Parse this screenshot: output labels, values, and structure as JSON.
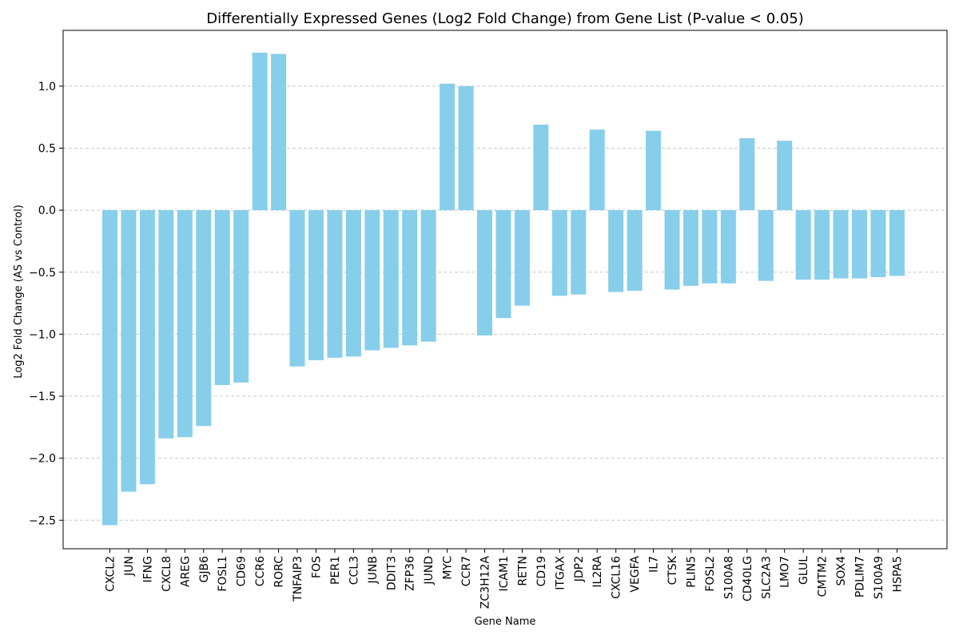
{
  "chart_data": {
    "type": "bar",
    "title": "Differentially Expressed Genes (Log2 Fold Change) from Gene List (P-value < 0.05)",
    "xlabel": "Gene Name",
    "ylabel": "Log2 Fold Change (AS vs Control)",
    "ylim": [
      -2.73,
      1.45
    ],
    "yticks": [
      -2.5,
      -2.0,
      -1.5,
      -1.0,
      -0.5,
      0.0,
      0.5,
      1.0
    ],
    "ytick_labels": [
      "−2.5",
      "−2.0",
      "−1.5",
      "−1.0",
      "−0.5",
      "0.0",
      "0.5",
      "1.0"
    ],
    "grid": "y, dashed",
    "bar_color": "#87ceeb",
    "categories": [
      "CXCL2",
      "JUN",
      "IFNG",
      "CXCL8",
      "AREG",
      "GJB6",
      "FOSL1",
      "CD69",
      "CCR6",
      "RORC",
      "TNFAIP3",
      "FOS",
      "PER1",
      "CCL3",
      "JUNB",
      "DDIT3",
      "ZFP36",
      "JUND",
      "MYC",
      "CCR7",
      "ZC3H12A",
      "ICAM1",
      "RETN",
      "CD19",
      "ITGAX",
      "JDP2",
      "IL2RA",
      "CXCL16",
      "VEGFA",
      "IL7",
      "CTSK",
      "PLIN5",
      "FOSL2",
      "S100A8",
      "CD40LG",
      "SLC2A3",
      "LMO7",
      "GLUL",
      "CMTM2",
      "SOX4",
      "PDLIM7",
      "S100A9",
      "HSPA5"
    ],
    "values": [
      -2.54,
      -2.27,
      -2.21,
      -1.84,
      -1.83,
      -1.74,
      -1.41,
      -1.39,
      1.27,
      1.26,
      -1.26,
      -1.21,
      -1.19,
      -1.18,
      -1.13,
      -1.11,
      -1.09,
      -1.06,
      1.02,
      1.0,
      -1.01,
      -0.87,
      -0.77,
      0.69,
      -0.69,
      -0.68,
      0.65,
      -0.66,
      -0.65,
      0.64,
      -0.64,
      -0.61,
      -0.59,
      -0.59,
      0.58,
      -0.57,
      0.56,
      -0.56,
      -0.56,
      -0.55,
      -0.55,
      -0.54,
      -0.53
    ]
  }
}
